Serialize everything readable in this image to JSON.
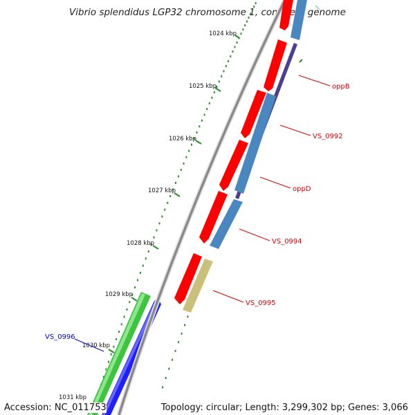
{
  "title": "Vibrio splendidus LGP32 chromosome 1, complete genome",
  "ticks": [
    {
      "kbp": 1024,
      "label": "1024 kbp"
    },
    {
      "kbp": 1025,
      "label": "1025 kbp"
    },
    {
      "kbp": 1026,
      "label": "1026 kbp"
    },
    {
      "kbp": 1027,
      "label": "1027 kbp"
    },
    {
      "kbp": 1028,
      "label": "1028 kbp"
    },
    {
      "kbp": 1029,
      "label": "1029 kbp"
    },
    {
      "kbp": 1030,
      "label": "1030 kbp"
    },
    {
      "kbp": 1031,
      "label": "1031 kbp"
    }
  ],
  "gene_labels": [
    {
      "name": "oppB",
      "color": "#dd0000"
    },
    {
      "name": "VS_0992",
      "color": "#dd0000"
    },
    {
      "name": "oppD",
      "color": "#dd0000"
    },
    {
      "name": "VS_0994",
      "color": "#dd0000"
    },
    {
      "name": "VS_0995",
      "color": "#dd0000"
    },
    {
      "name": "VS_0996",
      "color": "#0000cc"
    }
  ],
  "colors": {
    "cds_forward": "#ff0000",
    "gene_forward": "#4a86c0",
    "track_purple": "#4b3f8f",
    "cds_reverse": "#2020ff",
    "gene_reverse": "#3ec43e",
    "track_khaki": "#c9c07a",
    "tick": "#2e8b2e",
    "backbone": "#909090"
  },
  "footer": {
    "accession": "Accession: NC_011753",
    "topology": "Topology: circular; Length: 3,299,302 bp; Genes: 3,066"
  }
}
